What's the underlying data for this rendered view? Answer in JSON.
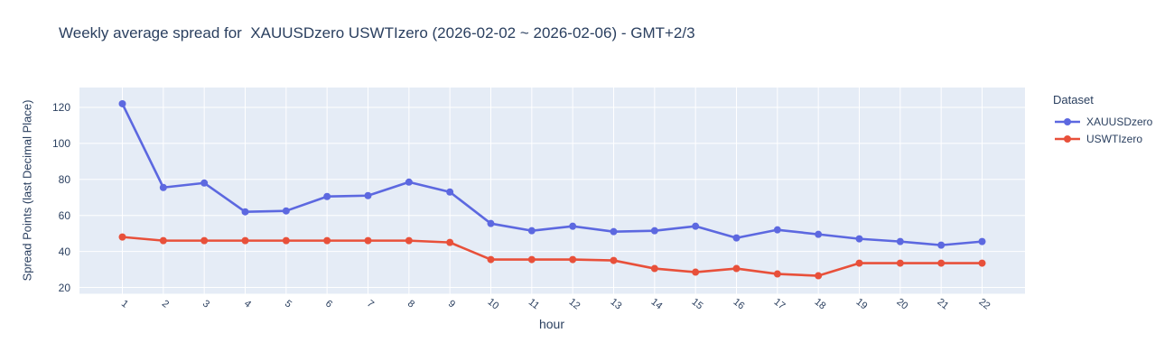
{
  "chart_data": {
    "type": "line",
    "title": "Weekly average spread for  XAUUSDzero USWTIzero (2026-02-02 ~ 2026-02-06) - GMT+2/3",
    "xlabel": "hour",
    "ylabel": "Spread Points (last Decimal Place)",
    "legend_title": "Dataset",
    "legend_position": "right",
    "grid": true,
    "x": [
      1,
      2,
      3,
      4,
      5,
      6,
      7,
      8,
      9,
      10,
      11,
      12,
      13,
      14,
      15,
      16,
      17,
      18,
      19,
      20,
      21,
      22
    ],
    "series": [
      {
        "name": "XAUUSDzero",
        "color": "#5c68e0",
        "values": [
          122,
          75.5,
          78,
          62,
          62.5,
          70.5,
          71,
          78.5,
          73,
          55.5,
          51.5,
          54,
          51,
          51.5,
          54,
          47.5,
          52,
          49.5,
          47,
          45.5,
          43.5,
          45.5
        ]
      },
      {
        "name": "USWTIzero",
        "color": "#e8503a",
        "values": [
          48,
          46,
          46,
          46,
          46,
          46,
          46,
          46,
          45,
          35.5,
          35.5,
          35.5,
          35,
          30.5,
          28.5,
          30.5,
          27.5,
          26.5,
          33.5,
          33.5,
          33.5,
          33.5
        ]
      }
    ],
    "yticks": [
      20,
      40,
      60,
      80,
      100,
      120
    ],
    "ylim": [
      16.5,
      131
    ],
    "plot_bg": "#e5ecf6",
    "grid_color": "#ffffff",
    "text_color": "#2a3f5f"
  }
}
